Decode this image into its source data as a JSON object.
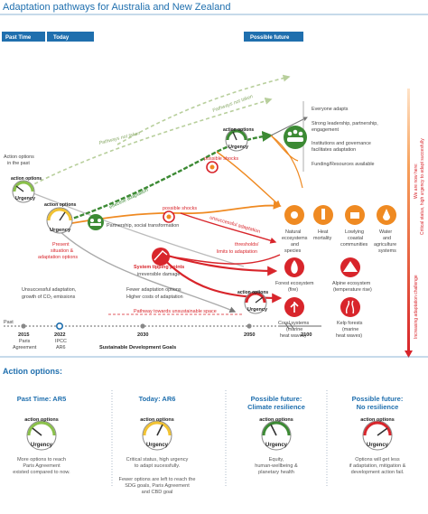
{
  "title": "Adaptation pathways for Australia and New Zealand",
  "tabs": {
    "past_time": "Past Time",
    "today": "Today",
    "possible_future": "Possible future"
  },
  "gauge": {
    "top": "action options",
    "bottom": "Urgency"
  },
  "left_labels": {
    "past_line1": "Action options",
    "past_line2": "in the past"
  },
  "today_labels": [
    "Present",
    "situation &",
    "adaptation options"
  ],
  "pathway_labels": {
    "not_taken_1": "Pathways not taken",
    "not_taken_2": "Pathways not taken",
    "effective": "effective adaptation",
    "possible_shocks_1": "possible shocks",
    "possible_shocks_2": "possible shocks",
    "unsuccessful": "unsuccessful adaptation",
    "thresholds_1": "thresholds/",
    "thresholds_2": "limits to adaptation",
    "tipping_1": "System tipping points",
    "tipping_2": "irreversible damage",
    "partnership": "Partnership, social transformation",
    "unsuccessful_growth_1": "Unsuccessful adaptation,",
    "unsuccessful_growth_2": "growth of CO₂ emissions",
    "fewer_1": "Fewer adaptation options",
    "fewer_2": "Higher costs of adaptation",
    "unsustainable": "Pathway towards unsustainable space"
  },
  "enablers": [
    "Everyone adapts",
    "Strong leadership, partnership,",
    "engagement",
    "Institutions and governance",
    "facilitates adaptation",
    "Funding/Resources available"
  ],
  "ecosystems_top": [
    {
      "l1": "Natural",
      "l2": "ecosystems",
      "l3": "and",
      "l4": "species"
    },
    {
      "l1": "Heat",
      "l2": "mortality",
      "l3": "",
      "l4": ""
    },
    {
      "l1": "Lowlying",
      "l2": "coastal",
      "l3": "communities",
      "l4": ""
    },
    {
      "l1": "Water",
      "l2": "and",
      "l3": "agriculture",
      "l4": "systems"
    }
  ],
  "ecosystems_mid": [
    {
      "l1": "Forest ecosystem",
      "l2": "(fire)"
    },
    {
      "l1": "Alpine ecosystem",
      "l2": "(temperature rise)"
    }
  ],
  "ecosystems_low": [
    {
      "l1": "Coral systems",
      "l2": "(marine",
      "l3": "heat waves)"
    },
    {
      "l1": "Kelp forests",
      "l2": "(marine",
      "l3": "heat waves)"
    }
  ],
  "side_labels": {
    "top_1": "We are now here:",
    "top_2": "Critical status, high urgency to adapt succesfully",
    "bottom": "Increasing adaptation challenge"
  },
  "timeline": {
    "past": "Past",
    "y2015": "2015",
    "y2015_sub1": "Paris",
    "y2015_sub2": "Agreement",
    "y2022": "2022",
    "y2022_sub1": "IPCC",
    "y2022_sub2": "AR6",
    "y2030": "2030",
    "y2050": "2050",
    "y2100": "2100",
    "sdg": "Sustainable Development Goals"
  },
  "action_options": {
    "heading": "Action options:",
    "cards": [
      {
        "title1": "Past Time: AR5",
        "title2": "",
        "lines": [
          "More options to reach",
          "Paris Agreement",
          "existed compared to now."
        ]
      },
      {
        "title1": "Today: AR6",
        "title2": "",
        "lines": [
          "Critical status, high urgency",
          "to adapt sucessfully.",
          "",
          "Fewer options are left to reach the",
          "SDG goals, Paris Agreement",
          "and CBD goal"
        ]
      },
      {
        "title1": "Possible future:",
        "title2": "Climate resilience",
        "lines": [
          "Equity,",
          "human-wellbeing &",
          "planetary health"
        ]
      },
      {
        "title1": "Possible future:",
        "title2": "No resilience",
        "lines": [
          "Options will get less",
          "if adaptation, mitigation &",
          "development action fail."
        ]
      }
    ]
  },
  "colors": {
    "blue": "#1f6fae",
    "green": "#3c8a34",
    "orange": "#ef8a22",
    "red": "#d8252b",
    "grey": "#9a9a9a"
  }
}
